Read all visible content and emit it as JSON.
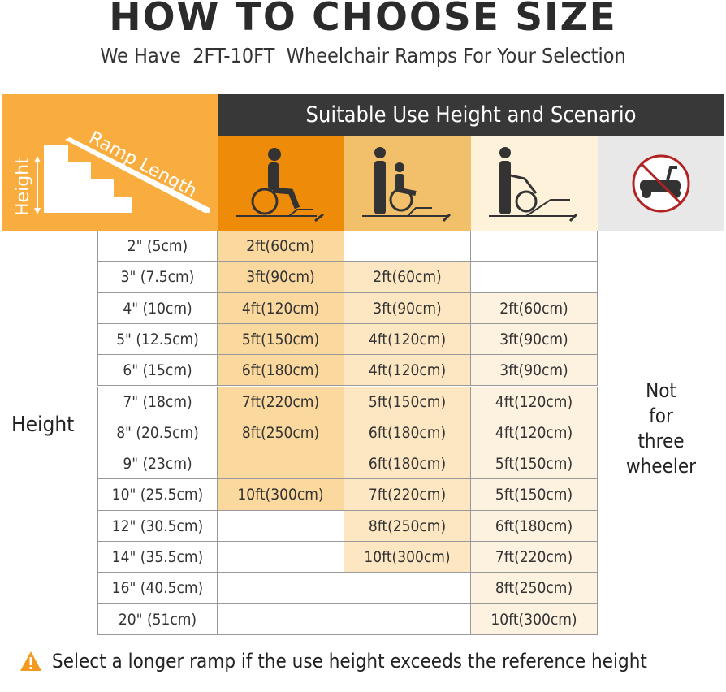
{
  "title": "HOW TO CHOOSE SIZE",
  "subtitle": "We Have  2FT-10FT  Wheelchair Ramps For Your Selection",
  "header": {
    "corner_height_label": "Height",
    "corner_ramp_label": "Ramp Length",
    "bar_title": "Suitable Use Height and Scenario",
    "icons": [
      "self-propelled-wheelchair-icon",
      "pushed-wheelchair-icon",
      "pulled-wheelchair-up-ramp-icon",
      "no-scooter-icon"
    ]
  },
  "row_label": "Height",
  "heights": [
    "2\" (5cm)",
    "3\" (7.5cm)",
    "4\" (10cm)",
    "5\" (12.5cm)",
    "6\" (15cm)",
    "7\" (18cm)",
    "8\" (20.5cm)",
    "9\" (23cm)",
    "10\" (25.5cm)",
    "12\" (30.5cm)",
    "14\" (35.5cm)",
    "16\" (40.5cm)",
    "20\" (51cm)"
  ],
  "col1": [
    "2ft(60cm)",
    "3ft(90cm)",
    "4ft(120cm)",
    "5ft(150cm)",
    "6ft(180cm)",
    "7ft(220cm)",
    "8ft(250cm)",
    "",
    "10ft(300cm)",
    "",
    "",
    "",
    ""
  ],
  "col2": [
    "",
    "2ft(60cm)",
    "3ft(90cm)",
    "4ft(120cm)",
    "4ft(120cm)",
    "5ft(150cm)",
    "6ft(180cm)",
    "6ft(180cm)",
    "7ft(220cm)",
    "8ft(250cm)",
    "10ft(300cm)",
    "",
    ""
  ],
  "col3": [
    "",
    "",
    "2ft(60cm)",
    "3ft(90cm)",
    "3ft(90cm)",
    "4ft(120cm)",
    "4ft(120cm)",
    "5ft(150cm)",
    "5ft(150cm)",
    "6ft(180cm)",
    "7ft(220cm)",
    "8ft(250cm)",
    "10ft(300cm)"
  ],
  "not_applicable": [
    "Not",
    "for",
    "three",
    "wheeler"
  ],
  "note": "Select a longer ramp if the use height exceeds the reference height",
  "colors": {
    "orange": "#f9ad3e",
    "dark": "#383838",
    "col1_bg": "#ee8c0a",
    "col2_bg": "#f2bf6a",
    "col3_bg": "#fff2da",
    "col4_bg": "#e8e8e8",
    "col1_fill": "#fbd89d",
    "col2_fill": "#fde7c2",
    "col3_fill": "#fdf2e0"
  }
}
